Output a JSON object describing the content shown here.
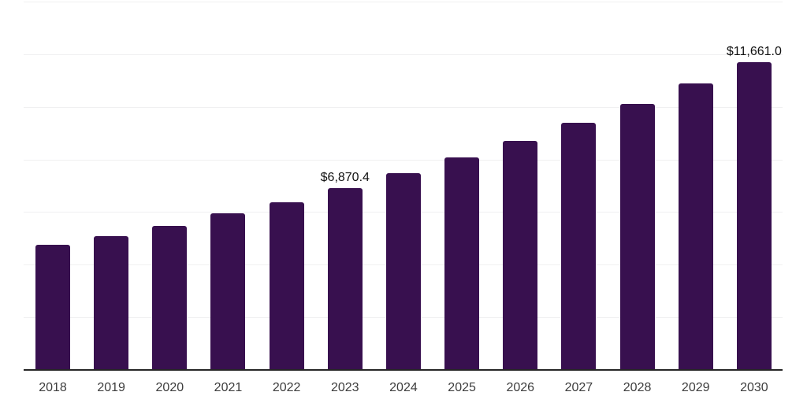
{
  "chart_data": {
    "type": "bar",
    "title": "",
    "xlabel": "",
    "ylabel": "",
    "categories": [
      "2018",
      "2019",
      "2020",
      "2021",
      "2022",
      "2023",
      "2024",
      "2025",
      "2026",
      "2027",
      "2028",
      "2029",
      "2030"
    ],
    "values": [
      4725,
      5055,
      5445,
      5920,
      6340,
      6870.4,
      7450,
      8045,
      8675,
      9360,
      10080,
      10855,
      11661.0
    ],
    "data_labels": [
      "",
      "",
      "",
      "",
      "",
      "$6,870.4",
      "",
      "",
      "",
      "",
      "",
      "",
      "$11,661.0"
    ],
    "ylim": [
      0,
      14000
    ],
    "gridline_step": 2000,
    "grid": "horizontal-only",
    "legend": "none",
    "colors": {
      "bar": "#38104F",
      "axis_line": "#262626",
      "gridline": "#f0f0f1",
      "value_label_text": "#111111",
      "tick_text": "#3d3d3d",
      "background": "#ffffff"
    }
  }
}
